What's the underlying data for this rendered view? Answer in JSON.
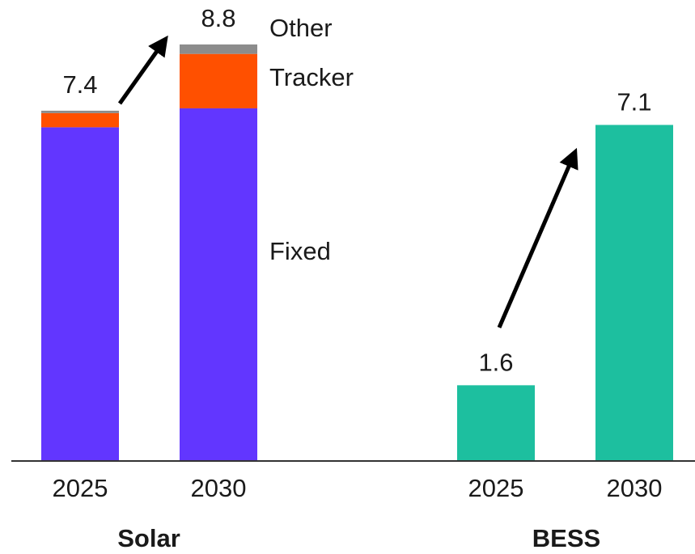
{
  "chart_data": {
    "type": "grouped-stacked-bar",
    "ylim": [
      0,
      9.5
    ],
    "groups": [
      {
        "name": "Solar",
        "categories": [
          "2025",
          "2030"
        ],
        "totals": [
          7.4,
          8.8
        ],
        "series": [
          {
            "name": "Fixed",
            "color": "#6236ff",
            "values": [
              7.05,
              7.45
            ]
          },
          {
            "name": "Tracker",
            "color": "#ff5000",
            "values": [
              0.3,
              1.15
            ]
          },
          {
            "name": "Other",
            "color": "#8c8c8c",
            "values": [
              0.05,
              0.2
            ]
          }
        ]
      },
      {
        "name": "BESS",
        "categories": [
          "2025",
          "2030"
        ],
        "color": "#1dbf9f",
        "values": [
          1.6,
          7.1
        ]
      }
    ]
  }
}
